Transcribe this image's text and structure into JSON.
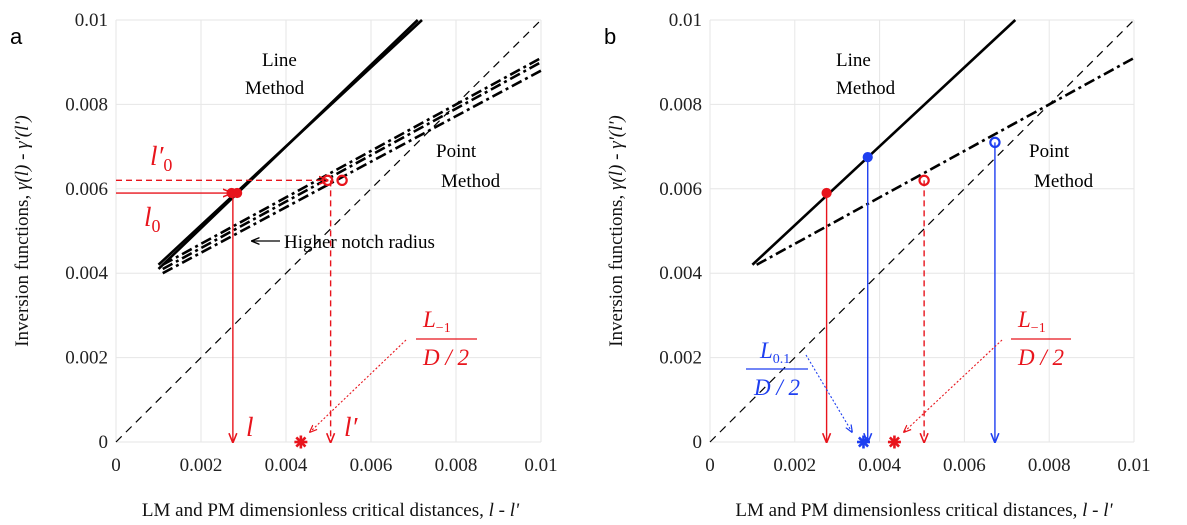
{
  "colors": {
    "red": "#e8141c",
    "blue": "#1e3ff0",
    "black": "#000000",
    "grid": "#e6e6e6"
  },
  "chart_data": [
    {
      "panel": "a",
      "type": "line",
      "xlim": [
        0,
        0.01
      ],
      "ylim": [
        0,
        0.01
      ],
      "xticks": [
        "0",
        "0.002",
        "0.004",
        "0.006",
        "0.008",
        "0.01"
      ],
      "yticks": [
        "0",
        "0.002",
        "0.004",
        "0.006",
        "0.008",
        "0.01"
      ],
      "xlabel_prefix": "LM and PM dimensionless critical distances, ",
      "xlabel_vars": "l - l'",
      "ylabel_prefix": "Inversion functions, ",
      "ylabel_vars": "γ(l) - γ'(l')",
      "grid": true,
      "series": [
        {
          "style": "dashed",
          "x": [
            0,
            0.01
          ],
          "y": [
            0,
            0.01
          ]
        },
        {
          "style": "solid",
          "x": [
            0.001,
            0.0071
          ],
          "y": [
            0.0041,
            0.01
          ]
        },
        {
          "style": "solid",
          "x": [
            0.001,
            0.0072
          ],
          "y": [
            0.0042,
            0.01
          ]
        },
        {
          "style": "dashdot",
          "x": [
            0.0011,
            0.01
          ],
          "y": [
            0.004,
            0.0088
          ]
        },
        {
          "style": "dashdot",
          "x": [
            0.0011,
            0.01
          ],
          "y": [
            0.0041,
            0.009
          ]
        },
        {
          "style": "dashdot",
          "x": [
            0.0011,
            0.01
          ],
          "y": [
            0.0042,
            0.0091
          ]
        }
      ],
      "markers": [
        {
          "kind": "filled",
          "color": "red",
          "x": 0.00272,
          "y": 0.0059
        },
        {
          "kind": "filled",
          "color": "red",
          "x": 0.00285,
          "y": 0.0059
        },
        {
          "kind": "open",
          "color": "red",
          "x": 0.00498,
          "y": 0.0062
        },
        {
          "kind": "open",
          "color": "red",
          "x": 0.00532,
          "y": 0.0062
        },
        {
          "kind": "star",
          "color": "red",
          "x": 0.00435,
          "y": 0
        }
      ],
      "guides": [
        {
          "style": "solid",
          "color": "red",
          "x": [
            0.00275,
            0.00275
          ],
          "y": [
            0.0059,
            0
          ]
        },
        {
          "style": "dashed",
          "color": "red",
          "x": [
            0.00505,
            0.00505
          ],
          "y": [
            0.0062,
            0
          ]
        },
        {
          "style": "solid",
          "color": "red",
          "x": [
            0,
            0.00272
          ],
          "y": [
            0.0059,
            0.0059
          ]
        },
        {
          "style": "dashed",
          "color": "red",
          "x": [
            0,
            0.00498
          ],
          "y": [
            0.0062,
            0.0062
          ]
        }
      ],
      "annotations": {
        "line_method": [
          "Line",
          "Method"
        ],
        "point_method": [
          "Point",
          "Method"
        ],
        "higher_notch": "Higher notch radius",
        "l0": "l",
        "l0_sub": "0",
        "lp0": "l′",
        "lp0_sub": "0",
        "l_axis": "l",
        "lp_axis": "l′",
        "frac_num": "L",
        "frac_num_sub": "−1",
        "frac_den": "D / 2"
      }
    },
    {
      "panel": "b",
      "type": "line",
      "xlim": [
        0,
        0.01
      ],
      "ylim": [
        0,
        0.01
      ],
      "xticks": [
        "0",
        "0.002",
        "0.004",
        "0.006",
        "0.008",
        "0.01"
      ],
      "yticks": [
        "0",
        "0.002",
        "0.004",
        "0.006",
        "0.008",
        "0.01"
      ],
      "xlabel_prefix": "LM and PM dimensionless critical distances, ",
      "xlabel_vars": "l - l'",
      "ylabel_prefix": "Inversion functions, ",
      "ylabel_vars": "γ(l) - γ'(l')",
      "grid": true,
      "series": [
        {
          "style": "dashed",
          "x": [
            0,
            0.01
          ],
          "y": [
            0,
            0.01
          ]
        },
        {
          "style": "solid",
          "x": [
            0.001,
            0.0072
          ],
          "y": [
            0.0042,
            0.01
          ]
        },
        {
          "style": "dashdot",
          "x": [
            0.0011,
            0.01
          ],
          "y": [
            0.0042,
            0.0091
          ]
        }
      ],
      "markers": [
        {
          "kind": "filled",
          "color": "red",
          "x": 0.00275,
          "y": 0.0059
        },
        {
          "kind": "filled",
          "color": "blue",
          "x": 0.00372,
          "y": 0.00675
        },
        {
          "kind": "open",
          "color": "red",
          "x": 0.00505,
          "y": 0.0062
        },
        {
          "kind": "open",
          "color": "blue",
          "x": 0.00672,
          "y": 0.0071
        },
        {
          "kind": "star",
          "color": "blue",
          "x": 0.00362,
          "y": 0
        },
        {
          "kind": "star",
          "color": "red",
          "x": 0.00435,
          "y": 0
        }
      ],
      "guides": [
        {
          "style": "solid",
          "color": "red",
          "x": [
            0.00275,
            0.00275
          ],
          "y": [
            0.0059,
            0
          ]
        },
        {
          "style": "solid",
          "color": "blue",
          "x": [
            0.00372,
            0.00372
          ],
          "y": [
            0.00675,
            0
          ]
        },
        {
          "style": "dashed",
          "color": "red",
          "x": [
            0.00505,
            0.00505
          ],
          "y": [
            0.0062,
            0
          ]
        },
        {
          "style": "solid",
          "color": "blue",
          "x": [
            0.00672,
            0.00672
          ],
          "y": [
            0.0071,
            0
          ]
        }
      ],
      "annotations": {
        "line_method": [
          "Line",
          "Method"
        ],
        "point_method": [
          "Point",
          "Method"
        ],
        "frac_blue_num": "L",
        "frac_blue_sub": "0.1",
        "frac_blue_den": "D / 2",
        "frac_red_num": "L",
        "frac_red_sub": "−1",
        "frac_red_den": "D / 2"
      }
    }
  ]
}
